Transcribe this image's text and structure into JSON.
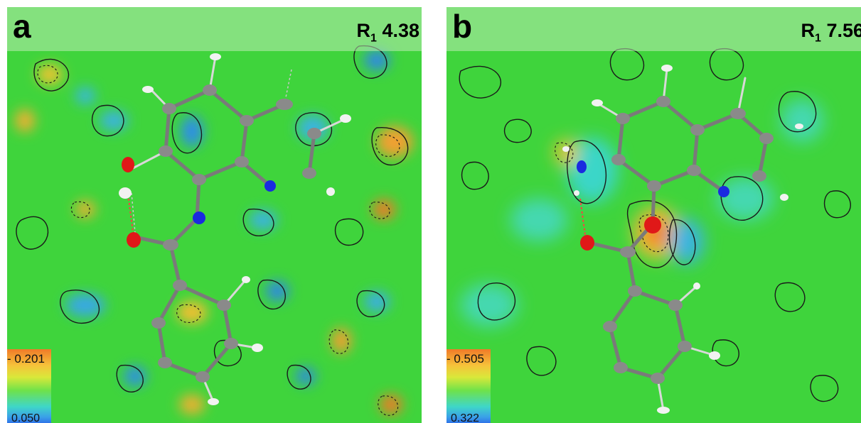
{
  "panels": [
    {
      "letter": "a",
      "r_label": "R",
      "r_sub": "1",
      "r_value": "4.38",
      "colorbar": {
        "max": "- 0.201",
        "min": "0.050"
      }
    },
    {
      "letter": "b",
      "r_label": "R",
      "r_sub": "1",
      "r_value": "7.56",
      "colorbar": {
        "max": "- 0.505",
        "min": "0.322"
      }
    }
  ],
  "colors": {
    "field_green": "#3fd43c",
    "positive_peak": "#f07a28",
    "negative_peak": "#2f74e8",
    "oxygen_atom": "#e01818",
    "nitrogen_atom": "#1a2ae0",
    "carbon_atom": "#8a8a8a",
    "hydrogen_atom": "#f2f2f2"
  }
}
